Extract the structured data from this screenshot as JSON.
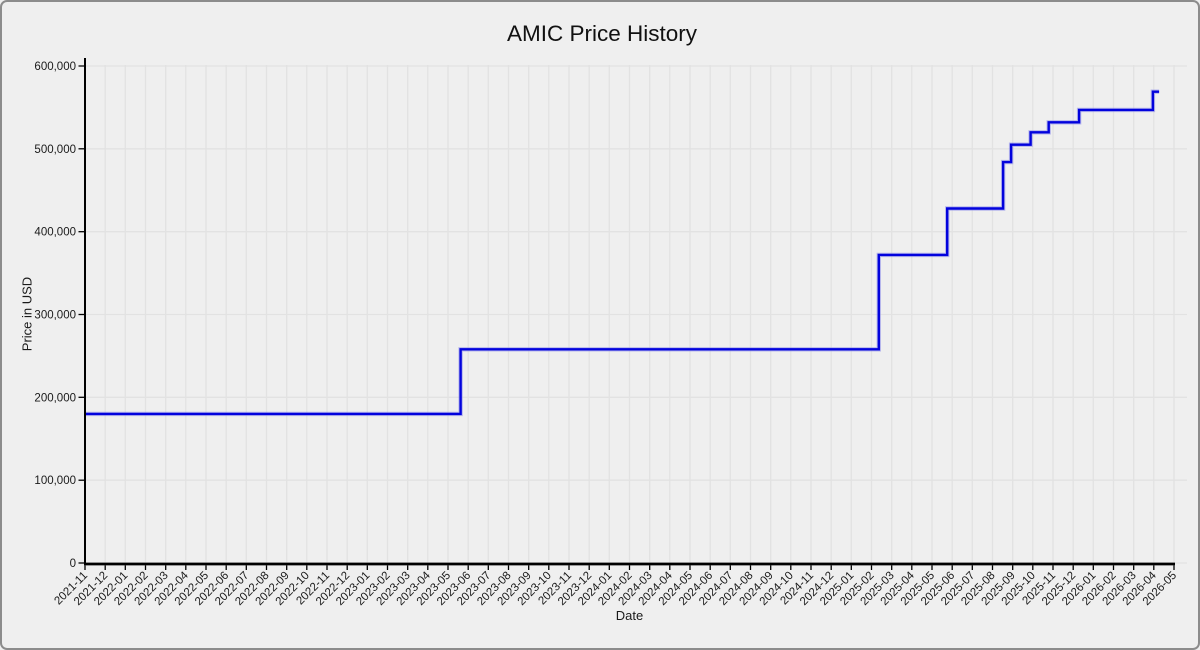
{
  "figure": {
    "background": "#efefef",
    "border_color": "#8c8c8c"
  },
  "chart_data": {
    "type": "line",
    "step": true,
    "title": "AMIC Price History",
    "xlabel": "Date",
    "ylabel": "Price in USD",
    "grid": true,
    "legend": "none",
    "ylim": [
      0,
      600000
    ],
    "xlim": [
      "2021-11",
      "2026-05"
    ],
    "y_ticks": [
      0,
      100000,
      200000,
      300000,
      400000,
      500000,
      600000
    ],
    "x_tick_labels": [
      "2021-11",
      "2021-12",
      "2022-01",
      "2022-02",
      "2022-03",
      "2022-04",
      "2022-05",
      "2022-06",
      "2022-07",
      "2022-08",
      "2022-09",
      "2022-10",
      "2022-11",
      "2022-12",
      "2023-01",
      "2023-02",
      "2023-03",
      "2023-04",
      "2023-05",
      "2023-06",
      "2023-07",
      "2023-08",
      "2023-09",
      "2023-10",
      "2023-11",
      "2023-12",
      "2024-01",
      "2024-02",
      "2024-03",
      "2024-04",
      "2024-05",
      "2024-06",
      "2024-07",
      "2024-08",
      "2024-09",
      "2024-10",
      "2024-11",
      "2024-12",
      "2025-01",
      "2025-02",
      "2025-03",
      "2025-04",
      "2025-05",
      "2025-06",
      "2025-07",
      "2025-08",
      "2025-09",
      "2025-10",
      "2025-11",
      "2025-12",
      "2026-01",
      "2026-02",
      "2026-03",
      "2026-04",
      "2026-05"
    ],
    "series": [
      {
        "name": "AMIC",
        "points": [
          {
            "date": "2021-11-01",
            "price": 180000
          },
          {
            "date": "2023-05-20",
            "price": 258000
          },
          {
            "date": "2025-02-12",
            "price": 372000
          },
          {
            "date": "2025-05-24",
            "price": 428000
          },
          {
            "date": "2025-08-17",
            "price": 484000
          },
          {
            "date": "2025-08-29",
            "price": 505000
          },
          {
            "date": "2025-09-28",
            "price": 520000
          },
          {
            "date": "2025-10-25",
            "price": 532000
          },
          {
            "date": "2025-12-10",
            "price": 547000
          },
          {
            "date": "2026-03-30",
            "price": 569000
          }
        ],
        "end_date": "2026-04-09"
      }
    ],
    "colors": {
      "line": "#0202dd",
      "line_halo": "#9595ea",
      "grid": "#e2e2e2",
      "axis": "#000000",
      "text": "#1a1a1a",
      "background": "#efefef"
    }
  }
}
